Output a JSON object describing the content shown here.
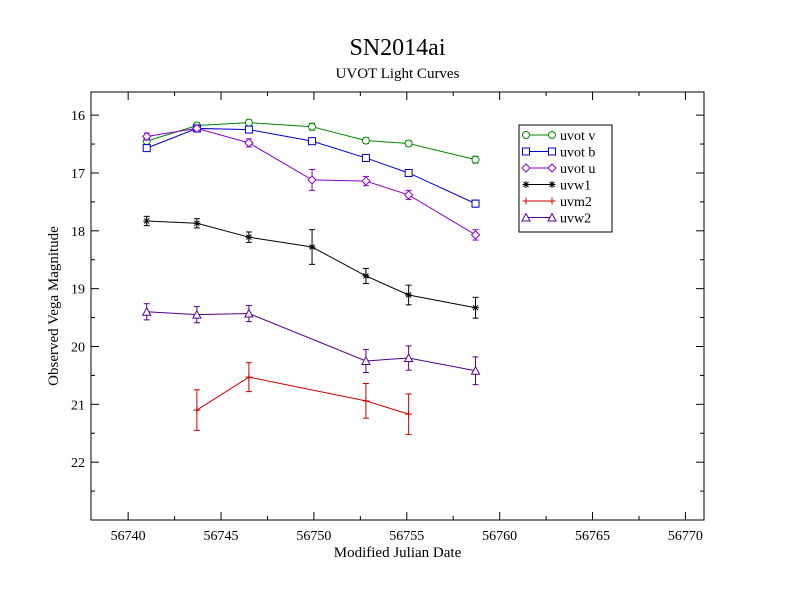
{
  "chart_data": {
    "type": "line",
    "title": "SN2014ai",
    "subtitle": "UVOT Light Curves",
    "xlabel": "Modified Julian Date",
    "ylabel": "Observed Vega Magnitude",
    "xlim": [
      56738,
      56771
    ],
    "ylim": [
      23,
      15.6
    ],
    "y_inverted": true,
    "x_ticks": [
      56740,
      56745,
      56750,
      56755,
      56760,
      56765,
      56770
    ],
    "x_tick_labels": [
      "56740",
      "56745",
      "56750",
      "56755",
      "56760",
      "56765",
      "56770"
    ],
    "y_ticks": [
      16,
      17,
      18,
      19,
      20,
      21,
      22
    ],
    "y_tick_labels": [
      "16",
      "17",
      "18",
      "19",
      "20",
      "21",
      "22"
    ],
    "grid": false,
    "legend_position": "top-right",
    "series": [
      {
        "name": "uvot v",
        "color": "#008800",
        "marker": "circle",
        "x": [
          56741.0,
          56743.7,
          56746.5,
          56749.9,
          56752.8,
          56755.1,
          56758.7
        ],
        "y": [
          16.45,
          16.18,
          16.13,
          16.2,
          16.44,
          16.49,
          16.77
        ],
        "err": [
          0.05,
          0.05,
          0.05,
          0.06,
          0.05,
          0.05,
          0.06
        ]
      },
      {
        "name": "uvot b",
        "color": "#0000cc",
        "marker": "square",
        "x": [
          56741.0,
          56743.7,
          56746.5,
          56749.9,
          56752.8,
          56755.1,
          56758.7
        ],
        "y": [
          16.57,
          16.23,
          16.25,
          16.45,
          16.74,
          17.0,
          17.53
        ],
        "err": [
          0.04,
          0.04,
          0.04,
          0.05,
          0.05,
          0.05,
          0.06
        ]
      },
      {
        "name": "uvot u",
        "color": "#8800cc",
        "marker": "diamond",
        "x": [
          56741.0,
          56743.7,
          56746.5,
          56749.9,
          56752.8,
          56755.1,
          56758.7
        ],
        "y": [
          16.37,
          16.23,
          16.48,
          17.12,
          17.14,
          17.38,
          18.07
        ],
        "err": [
          0.06,
          0.05,
          0.07,
          0.18,
          0.08,
          0.08,
          0.09
        ]
      },
      {
        "name": "uvw1",
        "color": "#000000",
        "marker": "star",
        "x": [
          56741.0,
          56743.7,
          56746.5,
          56749.9,
          56752.8,
          56755.1,
          56758.7
        ],
        "y": [
          17.83,
          17.87,
          18.11,
          18.28,
          18.78,
          19.11,
          19.33
        ],
        "err": [
          0.08,
          0.08,
          0.09,
          0.3,
          0.13,
          0.17,
          0.18
        ]
      },
      {
        "name": "uvm2",
        "color": "#cc0000",
        "marker": "plus",
        "x": [
          56743.7,
          56746.5,
          56752.8,
          56755.1
        ],
        "y": [
          21.1,
          20.53,
          20.94,
          21.17
        ],
        "err": [
          0.35,
          0.25,
          0.3,
          0.35
        ]
      },
      {
        "name": "uvw2",
        "color": "#550088",
        "marker": "triangle",
        "x": [
          56741.0,
          56743.7,
          56746.5,
          56752.8,
          56755.1,
          56758.7
        ],
        "y": [
          19.4,
          19.45,
          19.43,
          20.25,
          20.2,
          20.42
        ],
        "err": [
          0.14,
          0.14,
          0.14,
          0.2,
          0.21,
          0.24
        ]
      }
    ]
  }
}
